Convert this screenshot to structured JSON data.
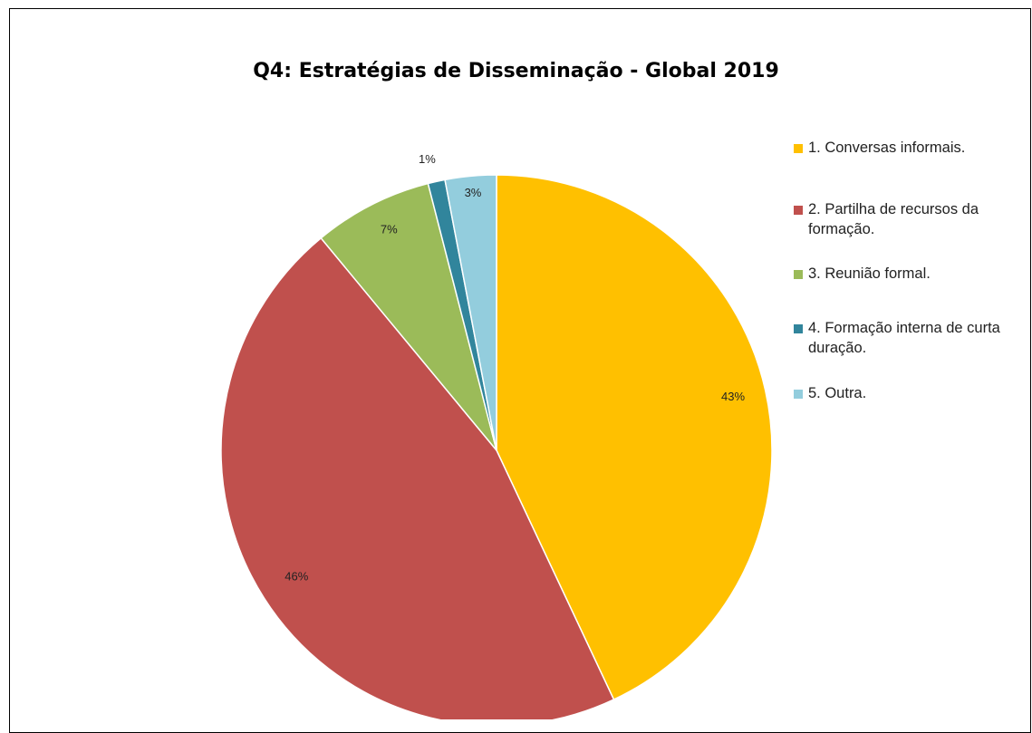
{
  "chart_data": {
    "type": "pie",
    "title": "Q4: Estratégias de Disseminação - Global 2019",
    "legend_position": "right",
    "slices": [
      {
        "label": "1. Conversas informais.",
        "value": 43,
        "display": "43%",
        "color": "#FFC000"
      },
      {
        "label": "2. Partilha de recursos da formação.",
        "value": 46,
        "display": "46%",
        "color": "#C0504D"
      },
      {
        "label": "3. Reunião formal.",
        "value": 7,
        "display": "7%",
        "color": "#9BBB59"
      },
      {
        "label": "4. Formação interna de curta duração.",
        "value": 1,
        "display": "1%",
        "color": "#31859C"
      },
      {
        "label": "5. Outra.",
        "value": 3,
        "display": "3%",
        "color": "#93CDDD"
      }
    ]
  }
}
